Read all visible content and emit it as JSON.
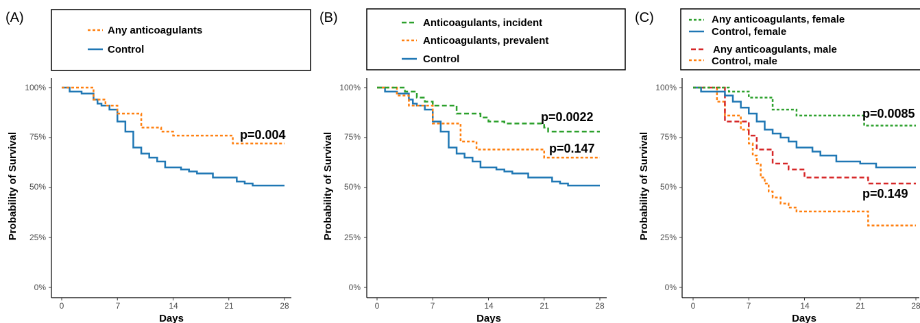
{
  "chart_data": [
    {
      "type": "line",
      "panel_label": "(A)",
      "xlabel": "Days",
      "ylabel": "Probability of Survival",
      "x_ticks": [
        0,
        7,
        14,
        21,
        28
      ],
      "y_ticks": [
        "0%",
        "25%",
        "50%",
        "75%",
        "100%"
      ],
      "xlim": [
        0,
        28
      ],
      "ylim": [
        0,
        1
      ],
      "step": true,
      "series": [
        {
          "name": "Any anticoagulants",
          "color": "#ff7f0e",
          "dash": "short-dash",
          "x": [
            0,
            1.5,
            4,
            5.5,
            7,
            10,
            12.5,
            14,
            21.5,
            28
          ],
          "y": [
            1.0,
            1.0,
            0.94,
            0.91,
            0.87,
            0.8,
            0.78,
            0.76,
            0.72,
            0.72
          ]
        },
        {
          "name": "Control",
          "color": "#1f77b4",
          "dash": "solid",
          "x": [
            0,
            0.5,
            1,
            2.5,
            4,
            4.5,
            5,
            6,
            7,
            8,
            9,
            10,
            11,
            12,
            13,
            15,
            16,
            17,
            19,
            21,
            22,
            23,
            24,
            28
          ],
          "y": [
            1.0,
            1.0,
            0.98,
            0.97,
            0.94,
            0.92,
            0.91,
            0.89,
            0.83,
            0.78,
            0.7,
            0.67,
            0.65,
            0.63,
            0.6,
            0.59,
            0.58,
            0.57,
            0.55,
            0.55,
            0.53,
            0.52,
            0.51,
            0.51
          ]
        }
      ],
      "annotations": [
        "p=0.004"
      ]
    },
    {
      "type": "line",
      "panel_label": "(B)",
      "xlabel": "Days",
      "ylabel": "Probability of Survival",
      "x_ticks": [
        0,
        7,
        14,
        21,
        28
      ],
      "y_ticks": [
        "0%",
        "25%",
        "50%",
        "75%",
        "100%"
      ],
      "xlim": [
        0,
        28
      ],
      "ylim": [
        0,
        1
      ],
      "step": true,
      "series": [
        {
          "name": "Anticoagulants, incident",
          "color": "#2ca02c",
          "dash": "long-dash",
          "x": [
            0,
            3.5,
            5,
            6,
            7,
            10,
            13,
            14,
            16,
            21,
            21.5,
            28
          ],
          "y": [
            1.0,
            0.98,
            0.95,
            0.93,
            0.91,
            0.87,
            0.85,
            0.83,
            0.82,
            0.8,
            0.78,
            0.78
          ]
        },
        {
          "name": "Anticoagulants, prevalent",
          "color": "#ff7f0e",
          "dash": "short-dash",
          "x": [
            0,
            2.5,
            4,
            7,
            9,
            10.5,
            12.5,
            20,
            21,
            28
          ],
          "y": [
            1.0,
            0.96,
            0.91,
            0.82,
            0.82,
            0.73,
            0.69,
            0.69,
            0.65,
            0.65
          ]
        },
        {
          "name": "Control",
          "color": "#1f77b4",
          "dash": "solid",
          "x": [
            0,
            0.5,
            1,
            2.5,
            4,
            4.5,
            5,
            6,
            7,
            8,
            9,
            10,
            11,
            12,
            13,
            15,
            16,
            17,
            19,
            21,
            22,
            23,
            24,
            28
          ],
          "y": [
            1.0,
            1.0,
            0.98,
            0.97,
            0.94,
            0.92,
            0.91,
            0.89,
            0.83,
            0.78,
            0.7,
            0.67,
            0.65,
            0.63,
            0.6,
            0.59,
            0.58,
            0.57,
            0.55,
            0.55,
            0.53,
            0.52,
            0.51,
            0.51
          ]
        }
      ],
      "annotations": [
        "p=0.0022",
        "p=0.147"
      ]
    },
    {
      "type": "line",
      "panel_label": "(C)",
      "xlabel": "Days",
      "ylabel": "Probability of Survival",
      "x_ticks": [
        0,
        7,
        14,
        21,
        28
      ],
      "y_ticks": [
        "0%",
        "25%",
        "50%",
        "75%",
        "100%"
      ],
      "xlim": [
        0,
        28
      ],
      "ylim": [
        0,
        1
      ],
      "step": true,
      "series": [
        {
          "name": "Any anticoagulants, female",
          "color": "#2ca02c",
          "dash": "short-dash",
          "x": [
            0,
            4.5,
            7,
            10,
            13,
            21.5,
            28
          ],
          "y": [
            1.0,
            0.98,
            0.95,
            0.89,
            0.86,
            0.81,
            0.81
          ]
        },
        {
          "name": "Control, female",
          "color": "#1f77b4",
          "dash": "solid",
          "x": [
            0,
            1,
            3,
            4,
            5,
            6,
            7,
            8,
            9,
            10,
            11,
            12,
            13,
            15,
            16,
            18,
            21,
            23,
            28
          ],
          "y": [
            1.0,
            0.98,
            0.98,
            0.96,
            0.93,
            0.9,
            0.87,
            0.83,
            0.79,
            0.77,
            0.75,
            0.73,
            0.7,
            0.68,
            0.66,
            0.63,
            0.62,
            0.6,
            0.6
          ]
        },
        {
          "name": "Any anticoagulants, male",
          "color": "#d62728",
          "dash": "long-dash",
          "x": [
            0,
            3.5,
            4,
            5.5,
            7,
            8,
            10,
            12,
            14,
            22,
            28
          ],
          "y": [
            1.0,
            1.0,
            0.83,
            0.83,
            0.76,
            0.69,
            0.62,
            0.59,
            0.55,
            0.52,
            0.52
          ]
        },
        {
          "name": "Control, male",
          "color": "#ff7f0e",
          "dash": "short-dash",
          "x": [
            0,
            3,
            4,
            6,
            7,
            7.5,
            8,
            8.5,
            9,
            9.5,
            10,
            11,
            12,
            13,
            19,
            22,
            28
          ],
          "y": [
            1.0,
            0.93,
            0.86,
            0.79,
            0.72,
            0.66,
            0.62,
            0.55,
            0.52,
            0.48,
            0.45,
            0.42,
            0.4,
            0.38,
            0.38,
            0.31,
            0.31
          ]
        }
      ],
      "annotations": [
        "p=0.0085",
        "p=0.149"
      ]
    }
  ]
}
